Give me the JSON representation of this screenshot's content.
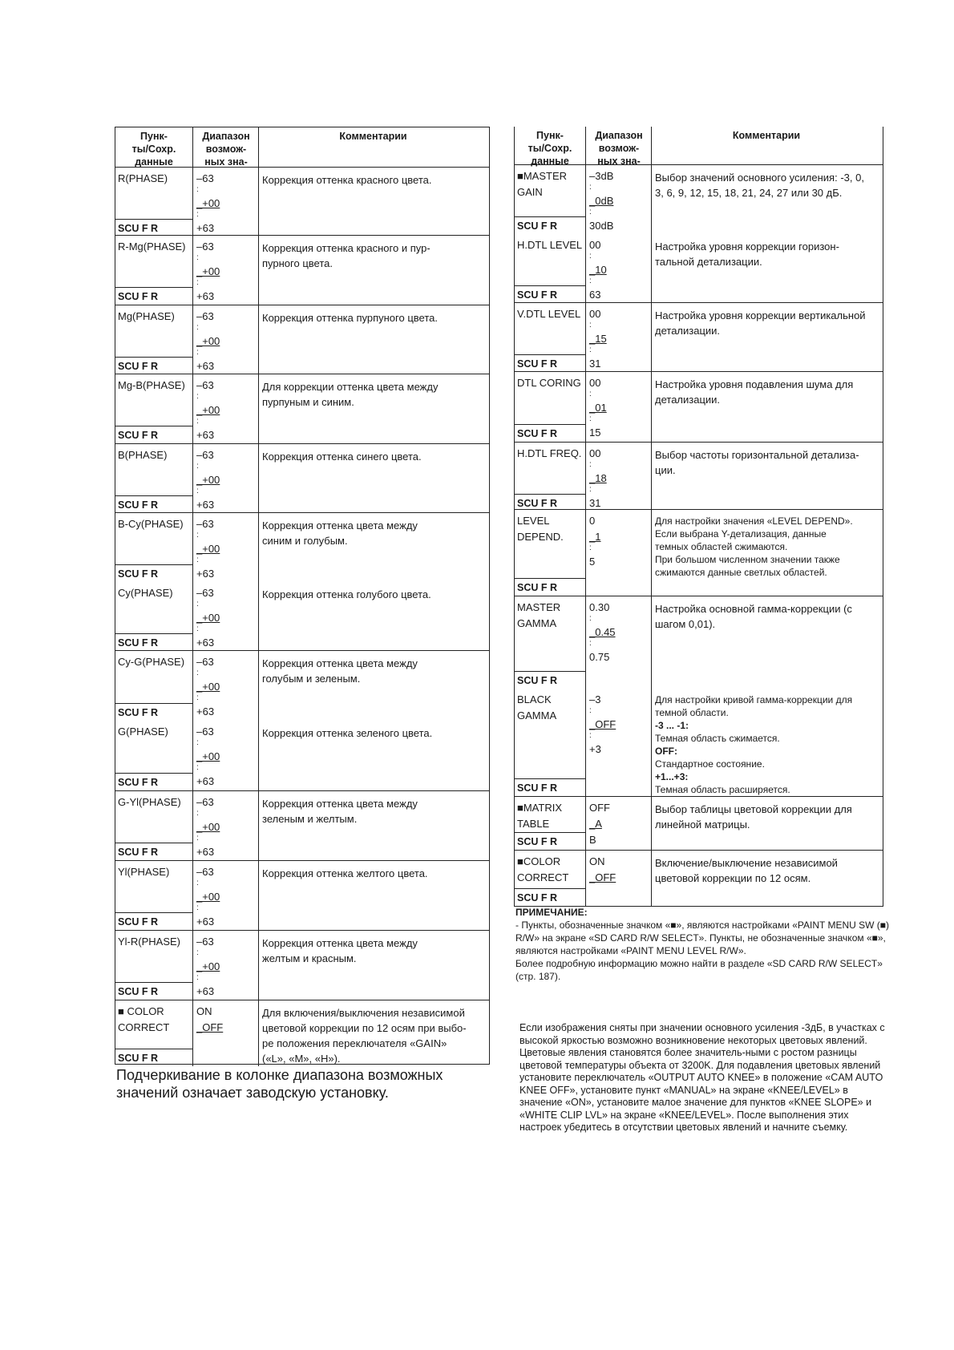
{
  "header": {
    "col1": "Пунк-\nты/Сохр.\nданные",
    "col2": "Диапазон\nвозмож-\nных зна-",
    "col3": "Комментарии"
  },
  "scu": "SCU F R",
  "left_table": [
    {
      "items": [
        {
          "name": "R(PHASE)",
          "range": [
            "–63",
            ":",
            "_+00",
            ":",
            "+63"
          ],
          "comment": [
            {
              "t": "Коррекция оттенка красного цвета."
            }
          ]
        }
      ]
    },
    {
      "items": [
        {
          "name": "R-Mg(PHASE)",
          "range": [
            "–63",
            ":",
            "_+00",
            ":",
            "+63"
          ],
          "comment": [
            {
              "t": "Коррекция оттенка красного и пур-"
            },
            {
              "t": "пурного цвета."
            }
          ]
        }
      ]
    },
    {
      "items": [
        {
          "name": "Mg(PHASE)",
          "range": [
            "–63",
            ":",
            "_+00",
            ":",
            "+63"
          ],
          "comment": [
            {
              "t": "Коррекция оттенка пурпуного цвета."
            }
          ]
        }
      ]
    },
    {
      "items": [
        {
          "name": "Mg-B(PHASE)",
          "range": [
            "–63",
            ":",
            "_+00",
            ":",
            "+63"
          ],
          "comment": [
            {
              "t": "Для коррекции оттенка цвета между"
            },
            {
              "t": "пурпуным и синим."
            }
          ]
        }
      ]
    },
    {
      "items": [
        {
          "name": "B(PHASE)",
          "range": [
            "–63",
            ":",
            "_+00",
            ":",
            "+63"
          ],
          "comment": [
            {
              "t": "Коррекция оттенка синего цвета."
            }
          ]
        }
      ]
    },
    {
      "items": [
        {
          "name": "B-Cy(PHASE)",
          "range": [
            "–63",
            ":",
            "_+00",
            ":",
            "+63"
          ],
          "comment": [
            {
              "t": "Коррекция оттенка цвета между"
            },
            {
              "t": "синим и голубым."
            }
          ]
        },
        {
          "name": "Cy(PHASE)",
          "range": [
            "–63",
            ":",
            "_+00",
            ":",
            "+63"
          ],
          "comment": [
            {
              "t": "Коррекция оттенка голубого цвета."
            }
          ]
        }
      ]
    },
    {
      "items": [
        {
          "name": "Cy-G(PHASE)",
          "range": [
            "–63",
            ":",
            "_+00",
            ":",
            "+63"
          ],
          "comment": [
            {
              "t": "Коррекция оттенка цвета между"
            },
            {
              "t": "голубым и зеленым."
            }
          ]
        },
        {
          "name": "G(PHASE)",
          "range": [
            "–63",
            ":",
            "_+00",
            ":",
            "+63"
          ],
          "comment": [
            {
              "t": "Коррекция оттенка зеленого цвета."
            }
          ]
        }
      ]
    },
    {
      "items": [
        {
          "name": "G-Yl(PHASE)",
          "range": [
            "–63",
            ":",
            "_+00",
            ":",
            "+63"
          ],
          "comment": [
            {
              "t": "Коррекция оттенка цвета между"
            },
            {
              "t": "зеленым и желтым."
            }
          ]
        }
      ]
    },
    {
      "items": [
        {
          "name": "Yl(PHASE)",
          "range": [
            "–63",
            ":",
            "_+00",
            ":",
            "+63"
          ],
          "comment": [
            {
              "t": "Коррекция оттенка желтого цвета."
            }
          ]
        }
      ]
    },
    {
      "items": [
        {
          "name": "Yl-R(PHASE)",
          "range": [
            "–63",
            ":",
            "_+00",
            ":",
            "+63"
          ],
          "comment": [
            {
              "t": "Коррекция оттенка цвета между"
            },
            {
              "t": "желтым и красным."
            }
          ]
        }
      ]
    },
    {
      "items": [
        {
          "name": "■ COLOR\nCORRECT",
          "range": [
            "ON",
            "_OFF"
          ],
          "comment": [
            {
              "t": "Для включения/выключения независимой"
            },
            {
              "t": "цветовой коррекции по 12 осям при выбо-"
            },
            {
              "t": "ре положения переключателя «GAIN»"
            },
            {
              "t": "(«L», «M», «H»)."
            }
          ]
        }
      ]
    }
  ],
  "right_table": [
    {
      "items": [
        {
          "name": "■MASTER\nGAIN",
          "range": [
            "–3dB",
            ":",
            "_0dB",
            ":",
            "30dB"
          ],
          "comment": [
            {
              "t": "Выбор значений основного усиления: -3, 0,"
            },
            {
              "t": "3,  6, 9, 12, 15, 18, 21, 24, 27 или 30 дБ."
            }
          ]
        },
        {
          "name": "H.DTL LEVEL",
          "range": [
            "00",
            ":",
            "_10",
            ":",
            "63"
          ],
          "comment": [
            {
              "t": "Настройка уровня коррекции горизон-"
            },
            {
              "t": "тальной детализации."
            }
          ]
        }
      ]
    },
    {
      "items": [
        {
          "name": "V.DTL LEVEL",
          "range": [
            "00",
            ":",
            "_15",
            ":",
            "31"
          ],
          "comment": [
            {
              "t": "Настройка уровня коррекции вертикальной"
            },
            {
              "t": "детализации."
            }
          ]
        }
      ]
    },
    {
      "items": [
        {
          "name": "DTL CORING",
          "range": [
            "00",
            ":",
            "_01",
            ":",
            "15"
          ],
          "comment": [
            {
              "t": "Настройка уровня подавления шума для"
            },
            {
              "t": "детализации."
            }
          ]
        }
      ]
    },
    {
      "items": [
        {
          "name": "H.DTL FREQ.",
          "range": [
            "00",
            ":",
            "_18",
            ":",
            "31"
          ],
          "comment": [
            {
              "t": "Выбор частоты горизонтальной детализа-"
            },
            {
              "t": "ции."
            }
          ]
        }
      ]
    },
    {
      "items": [
        {
          "name": "LEVEL\nDEPEND.",
          "range": [
            "0",
            "_1",
            ":",
            "5"
          ],
          "comment": [
            {
              "t": "Для настройки значения «LEVEL DEPEND»."
            },
            {
              "t": "Если выбрана Y-детализация, данные"
            },
            {
              "t": "темных областей сжимаются."
            },
            {
              "t": "При большом численном значении также"
            },
            {
              "t": "сжимаются данные светлых областей."
            }
          ]
        }
      ]
    },
    {
      "items": [
        {
          "name": "MASTER\nGAMMA",
          "range": [
            "0.30",
            ":",
            "_0.45",
            ":",
            "0.75"
          ],
          "comment": [
            {
              "t": "Настройка основной гамма-коррекции (с"
            },
            {
              "t": "шагом 0,01)."
            }
          ]
        },
        {
          "name": "BLACK\nGAMMA",
          "range": [
            "–3",
            ":",
            "_OFF",
            ":",
            "+3"
          ],
          "comment": [
            {
              "t": "Для настройки кривой гамма-коррекции для"
            },
            {
              "t": "темной области."
            },
            {
              "t": "-3 ... -1:",
              "b": true
            },
            {
              "t": "Темная область сжимается."
            },
            {
              "t": "OFF:",
              "b": true
            },
            {
              "t": "Стандартное состояние."
            },
            {
              "t": "+1...+3:",
              "b": true
            },
            {
              "t": "Темная область расширяется."
            }
          ]
        }
      ]
    },
    {
      "items": [
        {
          "name": "■MATRIX\nTABLE",
          "range": [
            "OFF",
            "_A",
            "B"
          ],
          "comment": [
            {
              "t": "Выбор таблицы цветовой коррекции для"
            },
            {
              "t": "линейной матрицы."
            }
          ]
        }
      ]
    },
    {
      "items": [
        {
          "name": "■COLOR\nCORRECT",
          "range": [
            "ON",
            "_OFF"
          ],
          "comment": [
            {
              "t": "Включение/выключение независимой"
            },
            {
              "t": "цветовой коррекции по 12 осям."
            }
          ]
        }
      ]
    }
  ],
  "footer_left": "Подчеркивание в колонке диапазона возможных значений означает заводскую установку.",
  "note": {
    "heading": "ПРИМЕЧАНИЕ:",
    "lines": [
      " - Пункты, обозначенные значком «■», являются настройками «PAINT MENU SW (■) R/W» на экране «SD CARD R/W SELECT». Пункты, не обозначенные значком «■», являются настройками «PAINT MENU LEVEL R/W».",
      "Более подробную информацию можно найти в разделе «SD CARD R/W SELECT» (стр. 187)."
    ]
  },
  "paragraph": "Если изображения сняты при значении основного усиления -3дБ, в участках с высокой яркостью возможно возникновение некоторых цветовых явлений. Цветовые явления становятся более значитель-ными с ростом разницы цветовой температуры объекта от 3200K. Для подавления цветовых явлений установите переключатель «OUTPUT AUTO KNEE» в положение «CAM AUTO KNEE OFF», установите пункт «MANUAL» на экране «KNEE/LEVEL» в значение «ON», установите малое значение для пунктов «KNEE SLOPE» и «WHITE CLIP LVL» на экране «KNEE/LEVEL». После выполнения этих настроек убедитесь в отсутствии цветовых явлений и начните съемку."
}
